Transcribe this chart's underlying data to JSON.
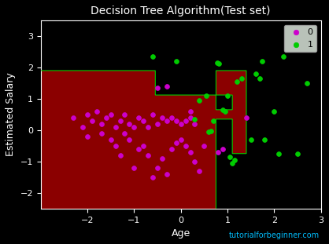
{
  "title": "Decision Tree Algorithm(Test set)",
  "xlabel": "Age",
  "ylabel": "Estimated Salary",
  "xlim": [
    -3,
    3
  ],
  "ylim": [
    -2.5,
    3.5
  ],
  "background_color": "#000000",
  "region_color_0": "#8B0000",
  "region_color_1": "#000000",
  "border_color": "#00CC00",
  "watermark": "tutorialforbeginner.com",
  "watermark_color": "#00BFFF",
  "legend_bg": "#e8f4e8",
  "figsize": [
    4.18,
    3.11
  ],
  "dpi": 100,
  "scatter_0_color": "#CC00CC",
  "scatter_1_color": "#00CC00",
  "scatter_0": [
    [
      -2.3,
      0.4
    ],
    [
      -2.1,
      0.1
    ],
    [
      -2.0,
      0.5
    ],
    [
      -2.0,
      -0.2
    ],
    [
      -1.9,
      0.3
    ],
    [
      -1.8,
      0.6
    ],
    [
      -1.7,
      -0.1
    ],
    [
      -1.7,
      0.2
    ],
    [
      -1.6,
      0.4
    ],
    [
      -1.5,
      -0.3
    ],
    [
      -1.5,
      0.5
    ],
    [
      -1.4,
      -0.5
    ],
    [
      -1.4,
      0.1
    ],
    [
      -1.3,
      -0.8
    ],
    [
      -1.3,
      0.3
    ],
    [
      -1.2,
      -0.1
    ],
    [
      -1.2,
      0.5
    ],
    [
      -1.1,
      -0.3
    ],
    [
      -1.1,
      0.2
    ],
    [
      -1.0,
      -1.2
    ],
    [
      -1.0,
      0.1
    ],
    [
      -0.9,
      -0.6
    ],
    [
      -0.9,
      0.4
    ],
    [
      -0.8,
      -0.5
    ],
    [
      -0.8,
      0.3
    ],
    [
      -0.7,
      -0.8
    ],
    [
      -0.7,
      0.1
    ],
    [
      -0.6,
      -1.5
    ],
    [
      -0.6,
      0.5
    ],
    [
      -0.5,
      -1.2
    ],
    [
      -0.5,
      0.2
    ],
    [
      -0.4,
      -0.9
    ],
    [
      -0.4,
      0.4
    ],
    [
      -0.3,
      -1.4
    ],
    [
      -0.3,
      0.3
    ],
    [
      -0.2,
      -0.6
    ],
    [
      -0.2,
      0.4
    ],
    [
      -0.1,
      -0.4
    ],
    [
      -0.1,
      0.3
    ],
    [
      0.0,
      -0.3
    ],
    [
      0.0,
      0.2
    ],
    [
      0.1,
      -0.5
    ],
    [
      0.1,
      0.3
    ],
    [
      0.2,
      -0.7
    ],
    [
      0.2,
      0.4
    ],
    [
      0.3,
      -1.0
    ],
    [
      0.3,
      0.2
    ],
    [
      0.4,
      -1.3
    ],
    [
      0.5,
      -0.5
    ],
    [
      0.8,
      -0.7
    ],
    [
      0.9,
      -0.6
    ],
    [
      -0.5,
      1.35
    ],
    [
      -0.3,
      1.4
    ],
    [
      0.2,
      0.6
    ],
    [
      1.4,
      0.4
    ]
  ],
  "scatter_1": [
    [
      -0.6,
      2.35
    ],
    [
      -0.1,
      2.2
    ],
    [
      0.3,
      0.35
    ],
    [
      0.4,
      0.95
    ],
    [
      0.55,
      1.1
    ],
    [
      0.6,
      -0.05
    ],
    [
      0.65,
      -0.02
    ],
    [
      0.7,
      0.3
    ],
    [
      0.78,
      2.15
    ],
    [
      0.82,
      2.12
    ],
    [
      0.9,
      0.65
    ],
    [
      0.95,
      0.6
    ],
    [
      1.0,
      1.1
    ],
    [
      1.05,
      -0.85
    ],
    [
      1.1,
      -1.05
    ],
    [
      1.15,
      -0.95
    ],
    [
      1.2,
      1.55
    ],
    [
      1.3,
      1.65
    ],
    [
      1.5,
      -0.3
    ],
    [
      1.6,
      1.8
    ],
    [
      1.7,
      1.65
    ],
    [
      1.75,
      2.2
    ],
    [
      1.8,
      -0.3
    ],
    [
      2.0,
      0.6
    ],
    [
      2.1,
      -0.75
    ],
    [
      2.2,
      2.35
    ],
    [
      2.5,
      -0.75
    ],
    [
      2.7,
      1.5
    ]
  ],
  "xticks": [
    -2,
    -1,
    0,
    1,
    2,
    3
  ],
  "yticks": [
    -2,
    -1,
    0,
    1,
    2,
    3
  ]
}
